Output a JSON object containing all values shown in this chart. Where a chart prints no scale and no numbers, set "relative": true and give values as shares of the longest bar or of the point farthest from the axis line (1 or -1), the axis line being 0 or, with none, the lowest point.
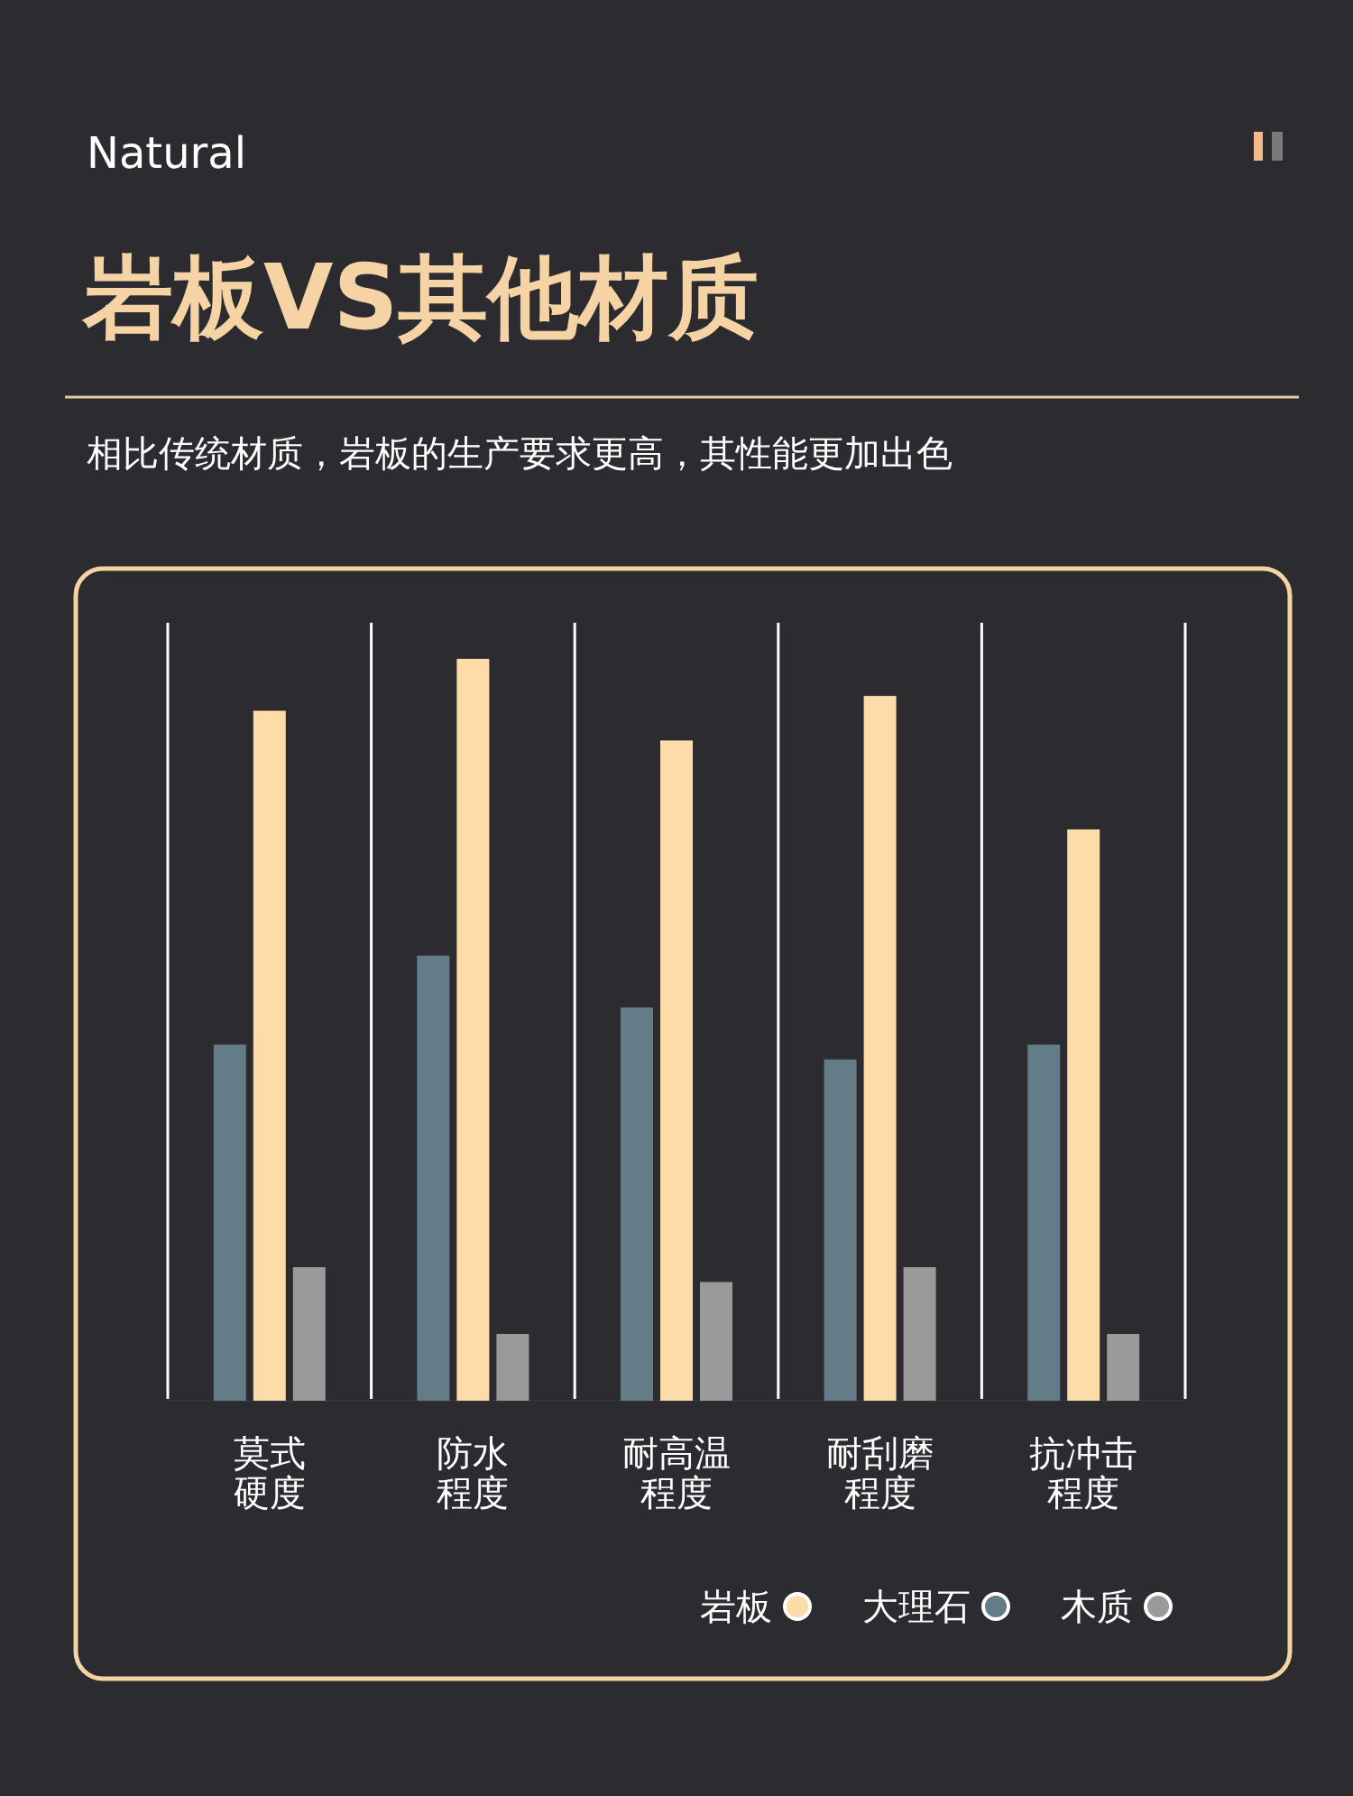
{
  "chart_data": {
    "type": "bar",
    "title": "岩板VS其他材质",
    "subtitle": "相比传统材质，岩板的生产要求更高，其性能更加出色",
    "annotations": [
      "Natural"
    ],
    "categories": [
      "莫式硬度",
      "防水程度",
      "耐高温程度",
      "耐刮磨程度",
      "抗冲击程度"
    ],
    "relative": true,
    "legend": "bottom right",
    "series": [
      {
        "name": "大理石",
        "color": "#637c87",
        "values": [
          0.48,
          0.6,
          0.53,
          0.46,
          0.48
        ]
      },
      {
        "name": "岩板",
        "color": "#fddcaa",
        "values": [
          0.93,
          1,
          0.89,
          0.95,
          0.77
        ]
      },
      {
        "name": "木质",
        "color": "#9a9a9a",
        "values": [
          0.18,
          0.09,
          0.16,
          0.18,
          0.09
        ]
      }
    ]
  }
}
